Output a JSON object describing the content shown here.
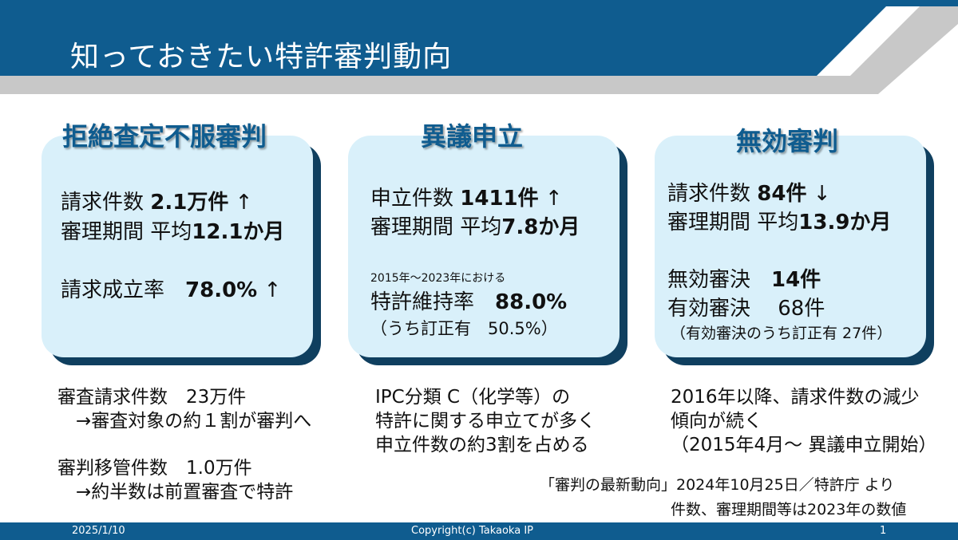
{
  "title": "知っておきたい特許審判動向",
  "colors": {
    "header_blue": "#0f5c8f",
    "header_gray": "#c8c8c8",
    "card_bg": "#d9f0fa",
    "card_shadow": "#0f3f5f",
    "heading_blue": "#0f5c8f"
  },
  "cards": [
    {
      "heading": "拒絶査定不服審判",
      "l1_label": "請求件数 ",
      "l1_value": "2.1万件",
      "l1_arrow": "↑",
      "l2_label": "審理期間 平均",
      "l2_value": "12.1か月",
      "l3_label": "請求成立率　",
      "l3_value": "78.0%",
      "l3_arrow": "↑"
    },
    {
      "heading": "異議申立",
      "l1_label": "申立件数 ",
      "l1_value": "1411件",
      "l1_arrow": "↑",
      "l2_label": "審理期間 平均",
      "l2_value": "7.8か月",
      "small_note": "2015年～2023年における",
      "l3_label": "特許維持率　",
      "l3_value": "88.0%",
      "l4": "（うち訂正有　50.5%）"
    },
    {
      "heading": "無効審判",
      "l1_label": "請求件数 ",
      "l1_value": "84件",
      "l1_arrow": "↓",
      "l2_label": "審理期間 平均",
      "l2_value": "13.9か月",
      "l3_label": "無効審決　",
      "l3_value": "14件",
      "l4": "有効審決　 68件",
      "l5": "（有効審決のうち訂正有 27件）"
    }
  ],
  "notes": {
    "left": [
      "審査請求件数　23万件",
      "　→審査対象の約１割が審判へ",
      "審判移管件数　1.0万件",
      "　→約半数は前置審査で特許"
    ],
    "middle": [
      "IPC分類 C（化学等）の",
      "特許に関する申立てが多く",
      "申立件数の約3割を占める"
    ],
    "right": [
      "2016年以降、請求件数の減少",
      "傾向が続く",
      "（2015年4月～ 異議申立開始）"
    ]
  },
  "source": [
    "「審判の最新動向」2024年10月25日／特許庁 より",
    "件数、審理期間等は2023年の数値"
  ],
  "footer": {
    "date": "2025/1/10",
    "copyright": "Copyright(c) Takaoka IP",
    "page": "1"
  }
}
